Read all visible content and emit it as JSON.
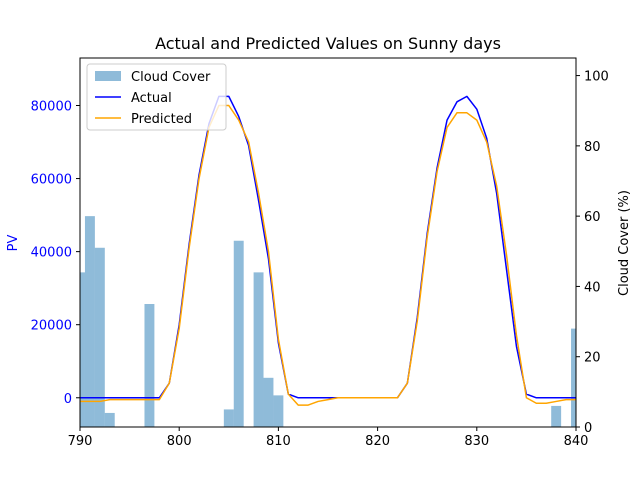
{
  "chart_data": {
    "type": "line",
    "title": "Actual and Predicted Values on Sunny days",
    "xlabel": "",
    "ylabel_left": "PV",
    "ylabel_right": "Cloud Cover (%)",
    "xlim": [
      790,
      840
    ],
    "ylim_left": [
      -8000,
      93000
    ],
    "ylim_right": [
      0,
      105
    ],
    "x_ticks": [
      790,
      800,
      810,
      820,
      830,
      840
    ],
    "y_left_ticks": [
      0,
      20000,
      40000,
      60000,
      80000
    ],
    "y_right_ticks": [
      0,
      20,
      40,
      60,
      80,
      100
    ],
    "grid": false,
    "legend_position": "upper left",
    "colors": {
      "actual": "#0000ff",
      "predicted": "#ffa500",
      "cloud": "#1f77b4",
      "left_axis_text": "#0000ff",
      "axis": "#000000"
    },
    "legend": [
      "Cloud Cover",
      "Actual",
      "Predicted"
    ],
    "series": [
      {
        "name": "Actual",
        "x": [
          790,
          791,
          792,
          793,
          794,
          795,
          796,
          797,
          798,
          799,
          800,
          801,
          802,
          803,
          804,
          805,
          806,
          807,
          808,
          809,
          810,
          811,
          812,
          813,
          814,
          815,
          816,
          817,
          818,
          819,
          820,
          821,
          822,
          823,
          824,
          825,
          826,
          827,
          828,
          829,
          830,
          831,
          832,
          833,
          834,
          835,
          836,
          837,
          838,
          839,
          840
        ],
        "values": [
          0,
          0,
          0,
          0,
          0,
          0,
          0,
          0,
          0,
          4000,
          20000,
          42000,
          61000,
          75000,
          82500,
          82500,
          77000,
          69000,
          54000,
          38000,
          15000,
          1000,
          0,
          0,
          0,
          0,
          0,
          0,
          0,
          0,
          0,
          0,
          0,
          4000,
          22000,
          45000,
          63000,
          76000,
          81000,
          82500,
          79000,
          71000,
          56000,
          35000,
          14000,
          1000,
          0,
          0,
          0,
          0,
          0
        ]
      },
      {
        "name": "Predicted",
        "x": [
          790,
          791,
          792,
          793,
          794,
          795,
          796,
          797,
          798,
          799,
          800,
          801,
          802,
          803,
          804,
          805,
          806,
          807,
          808,
          809,
          810,
          811,
          812,
          813,
          814,
          815,
          816,
          817,
          818,
          819,
          820,
          821,
          822,
          823,
          824,
          825,
          826,
          827,
          828,
          829,
          830,
          831,
          832,
          833,
          834,
          835,
          836,
          837,
          838,
          839,
          840
        ],
        "values": [
          -1000,
          -1000,
          -1000,
          -500,
          -500,
          -500,
          -500,
          -500,
          -500,
          4000,
          19000,
          41000,
          60000,
          74000,
          80000,
          80000,
          76000,
          70000,
          56000,
          40000,
          16000,
          1000,
          -2000,
          -2000,
          -1000,
          -500,
          0,
          0,
          0,
          0,
          0,
          0,
          0,
          4000,
          21000,
          44000,
          62000,
          74000,
          78000,
          78000,
          76000,
          70000,
          58000,
          39000,
          17000,
          0,
          -1500,
          -1500,
          -1000,
          -500,
          -500
        ]
      },
      {
        "name": "Cloud Cover",
        "type": "bar",
        "bar_width": 1,
        "x": [
          790,
          791,
          792,
          793,
          797,
          805,
          806,
          808,
          809,
          810,
          838,
          840
        ],
        "values": [
          44,
          60,
          51,
          4,
          35,
          5,
          53,
          44,
          14,
          9,
          6,
          28
        ]
      }
    ]
  }
}
